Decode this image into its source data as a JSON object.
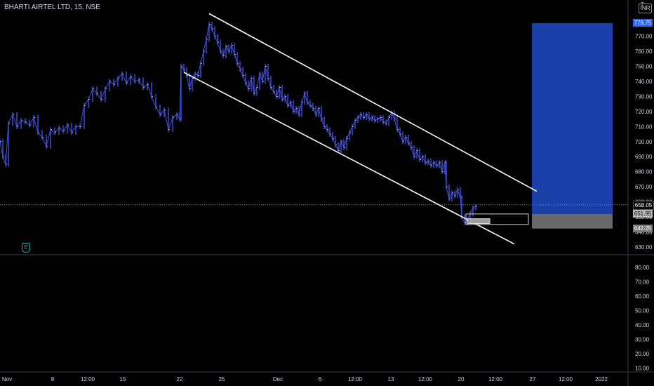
{
  "header": {
    "title": "BHARTI AIRTEL LTD, 15, NSE"
  },
  "controls": {
    "currency": "INR",
    "top_digit": "7"
  },
  "badges": {
    "target": "778.75",
    "last": "658.05",
    "entry": "651.95",
    "stop": "642.25",
    "earnings": "E"
  },
  "colors": {
    "background": "#000000",
    "bars": "#3f51e0",
    "channel": "#ffffff",
    "target_zone": "#1b3fa8",
    "stop_zone": "#7a7a7a",
    "target_badge": "#2962ff",
    "axis_text": "#d1d4dc"
  },
  "chart_data": [
    {
      "type": "line",
      "title": "BHARTI AIRTEL LTD, 15, NSE",
      "price_axis_ticks": [
        630,
        640,
        650,
        660,
        670,
        680,
        690,
        700,
        710,
        720,
        730,
        740,
        750,
        760,
        770
      ],
      "price_axis_labels": [
        "630.00",
        "640.00",
        "650.00",
        "660.00",
        "670.00",
        "680.00",
        "690.00",
        "700.00",
        "710.00",
        "720.00",
        "730.00",
        "740.00",
        "750.00",
        "760.00",
        "770.00"
      ],
      "ylim": [
        623,
        787
      ],
      "x_axis_labels": [
        "Nov",
        "8",
        "12:00",
        "15",
        "22",
        "25",
        "Dec",
        "6",
        "12:00",
        "13",
        "12:00",
        "20",
        "12:00",
        "27",
        "12:00",
        "2022"
      ],
      "price_series": [
        [
          0,
          700
        ],
        [
          4,
          690
        ],
        [
          8,
          685
        ],
        [
          12,
          712
        ],
        [
          18,
          718
        ],
        [
          24,
          710
        ],
        [
          30,
          714
        ],
        [
          36,
          713
        ],
        [
          42,
          711
        ],
        [
          48,
          716
        ],
        [
          54,
          706
        ],
        [
          60,
          703
        ],
        [
          66,
          697
        ],
        [
          72,
          708
        ],
        [
          78,
          706
        ],
        [
          84,
          709
        ],
        [
          90,
          707
        ],
        [
          96,
          711
        ],
        [
          102,
          706
        ],
        [
          108,
          710
        ],
        [
          114,
          710
        ],
        [
          120,
          724
        ],
        [
          126,
          728
        ],
        [
          132,
          735
        ],
        [
          138,
          732
        ],
        [
          144,
          728
        ],
        [
          150,
          735
        ],
        [
          156,
          740
        ],
        [
          162,
          738
        ],
        [
          168,
          742
        ],
        [
          174,
          745
        ],
        [
          180,
          739
        ],
        [
          186,
          743
        ],
        [
          192,
          740
        ],
        [
          198,
          741
        ],
        [
          204,
          736
        ],
        [
          210,
          738
        ],
        [
          216,
          730
        ],
        [
          222,
          723
        ],
        [
          228,
          718
        ],
        [
          234,
          721
        ],
        [
          240,
          708
        ],
        [
          246,
          716
        ],
        [
          252,
          718
        ],
        [
          256,
          715
        ],
        [
          258,
          750
        ],
        [
          262,
          748
        ],
        [
          266,
          744
        ],
        [
          270,
          735
        ],
        [
          274,
          742
        ],
        [
          278,
          745
        ],
        [
          282,
          744
        ],
        [
          286,
          752
        ],
        [
          290,
          760
        ],
        [
          294,
          768
        ],
        [
          298,
          778
        ],
        [
          302,
          775
        ],
        [
          306,
          770
        ],
        [
          310,
          766
        ],
        [
          314,
          760
        ],
        [
          318,
          757
        ],
        [
          322,
          763
        ],
        [
          326,
          760
        ],
        [
          330,
          764
        ],
        [
          334,
          758
        ],
        [
          338,
          752
        ],
        [
          342,
          748
        ],
        [
          346,
          744
        ],
        [
          350,
          739
        ],
        [
          354,
          735
        ],
        [
          358,
          742
        ],
        [
          362,
          732
        ],
        [
          366,
          736
        ],
        [
          370,
          745
        ],
        [
          374,
          740
        ],
        [
          378,
          750
        ],
        [
          382,
          742
        ],
        [
          386,
          736
        ],
        [
          390,
          733
        ],
        [
          394,
          730
        ],
        [
          398,
          736
        ],
        [
          402,
          728
        ],
        [
          406,
          730
        ],
        [
          410,
          724
        ],
        [
          414,
          726
        ],
        [
          418,
          720
        ],
        [
          422,
          722
        ],
        [
          426,
          718
        ],
        [
          430,
          726
        ],
        [
          434,
          732
        ],
        [
          438,
          726
        ],
        [
          442,
          724
        ],
        [
          446,
          722
        ],
        [
          450,
          718
        ],
        [
          454,
          722
        ],
        [
          458,
          715
        ],
        [
          462,
          710
        ],
        [
          466,
          708
        ],
        [
          470,
          705
        ],
        [
          474,
          702
        ],
        [
          478,
          698
        ],
        [
          482,
          694
        ],
        [
          486,
          700
        ],
        [
          490,
          696
        ],
        [
          494,
          702
        ],
        [
          498,
          706
        ],
        [
          502,
          710
        ],
        [
          506,
          714
        ],
        [
          510,
          716
        ],
        [
          514,
          718
        ],
        [
          518,
          716
        ],
        [
          522,
          718
        ],
        [
          526,
          715
        ],
        [
          530,
          716
        ],
        [
          534,
          714
        ],
        [
          538,
          715
        ],
        [
          542,
          716
        ],
        [
          546,
          713
        ],
        [
          550,
          712
        ],
        [
          554,
          716
        ],
        [
          558,
          719
        ],
        [
          562,
          715
        ],
        [
          566,
          708
        ],
        [
          570,
          705
        ],
        [
          574,
          700
        ],
        [
          578,
          703
        ],
        [
          582,
          699
        ],
        [
          586,
          696
        ],
        [
          590,
          690
        ],
        [
          594,
          694
        ],
        [
          598,
          688
        ],
        [
          602,
          690
        ],
        [
          606,
          686
        ],
        [
          610,
          687
        ],
        [
          614,
          684
        ],
        [
          618,
          686
        ],
        [
          622,
          684
        ],
        [
          626,
          686
        ],
        [
          630,
          680
        ],
        [
          634,
          686
        ],
        [
          636,
          670
        ],
        [
          640,
          662
        ],
        [
          644,
          666
        ],
        [
          648,
          664
        ],
        [
          652,
          668
        ],
        [
          656,
          663
        ],
        [
          658,
          650
        ],
        [
          662,
          646
        ],
        [
          666,
          648
        ],
        [
          670,
          652
        ],
        [
          674,
          656
        ],
        [
          678,
          657
        ]
      ],
      "channel_upper": {
        "start": [
          298,
          785
        ],
        "end": [
          765,
          667
        ]
      },
      "channel_lower": {
        "start": [
          262,
          746
        ],
        "end": [
          733,
          632
        ]
      },
      "position": {
        "target": 778.75,
        "entry": 651.95,
        "stop": 642.25,
        "last": 658.05
      },
      "pane2_ticks": [
        10,
        20,
        30,
        40,
        50,
        60,
        70,
        80
      ],
      "pane2_labels": [
        "10.00",
        "20.00",
        "30.00",
        "40.00",
        "50.00",
        "60.00",
        "70.00",
        "80.00"
      ]
    }
  ]
}
